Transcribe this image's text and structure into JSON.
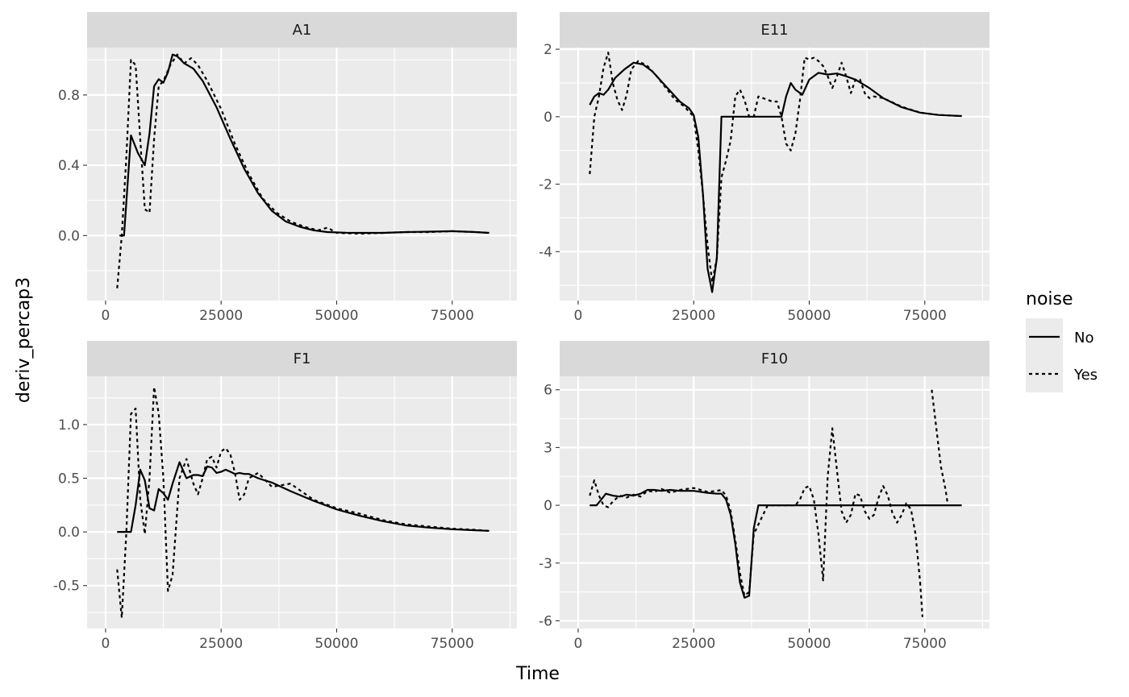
{
  "chart_data": {
    "type": "line",
    "xlabel": "Time",
    "ylabel": "deriv_percap3",
    "legend": {
      "title": "noise",
      "position": "right",
      "entries": [
        {
          "label": "No",
          "linetype": "solid"
        },
        {
          "label": "Yes",
          "linetype": "dashed"
        }
      ]
    },
    "grid": true,
    "panels": [
      {
        "title": "A1",
        "xlim": [
          -4000,
          89000
        ],
        "ylim": [
          -0.37,
          1.07
        ],
        "xticks": [
          0,
          25000,
          50000,
          75000
        ],
        "xtick_labels": [
          "0",
          "25000",
          "50000",
          "75000"
        ],
        "yticks": [
          0.0,
          0.4,
          0.8
        ],
        "ytick_labels": [
          "0.0",
          "0.4",
          "0.8"
        ],
        "series": [
          {
            "name": "No",
            "x": [
              3000,
              4000,
              5500,
              7000,
              8500,
              9500,
              10500,
              11500,
              12500,
              13500,
              14500,
              15500,
              17000,
              19000,
              21000,
              24000,
              27000,
              30000,
              33000,
              36000,
              39000,
              42000,
              45000,
              48000,
              52000,
              56000,
              60000,
              65000,
              70000,
              75000,
              80000,
              83000
            ],
            "y": [
              0.0,
              0.0,
              0.57,
              0.47,
              0.4,
              0.58,
              0.85,
              0.89,
              0.87,
              0.93,
              1.03,
              1.02,
              0.98,
              0.95,
              0.88,
              0.73,
              0.55,
              0.38,
              0.24,
              0.14,
              0.08,
              0.05,
              0.03,
              0.02,
              0.016,
              0.015,
              0.015,
              0.02,
              0.022,
              0.025,
              0.02,
              0.015
            ]
          },
          {
            "name": "Yes",
            "x": [
              2500,
              3500,
              4500,
              5500,
              6500,
              7500,
              8500,
              9500,
              10500,
              11500,
              12500,
              14000,
              15500,
              17000,
              18500,
              20000,
              22000,
              25000,
              28000,
              31000,
              34000,
              37000,
              40000,
              43000,
              46000,
              48000,
              50000,
              55000,
              60000,
              65000,
              70000,
              75000,
              80000,
              83000
            ],
            "y": [
              -0.3,
              0.0,
              0.45,
              1.0,
              0.97,
              0.55,
              0.15,
              0.13,
              0.55,
              0.85,
              0.88,
              0.97,
              1.03,
              0.98,
              1.01,
              0.97,
              0.88,
              0.72,
              0.52,
              0.35,
              0.21,
              0.13,
              0.08,
              0.05,
              0.03,
              0.045,
              0.015,
              0.01,
              0.015,
              0.02,
              0.02,
              0.025,
              0.02,
              0.015
            ]
          }
        ]
      },
      {
        "title": "E11",
        "xlim": [
          -4000,
          89000
        ],
        "ylim": [
          -5.45,
          2.05
        ],
        "xticks": [
          0,
          25000,
          50000,
          75000
        ],
        "xtick_labels": [
          "0",
          "25000",
          "50000",
          "75000"
        ],
        "yticks": [
          -4,
          -2,
          0,
          2
        ],
        "ytick_labels": [
          "-4",
          "-2",
          "0",
          "2"
        ],
        "series": [
          {
            "name": "No",
            "x": [
              2500,
              3500,
              4500,
              5500,
              6500,
              8000,
              10000,
              12000,
              14000,
              16000,
              18000,
              20000,
              22000,
              24000,
              25000,
              26000,
              27000,
              28000,
              29000,
              30000,
              31000,
              32000,
              34000,
              36000,
              38000,
              40000,
              42000,
              44000,
              45000,
              46000,
              47000,
              48500,
              50000,
              52000,
              54000,
              56000,
              58000,
              60000,
              63000,
              66000,
              70000,
              74000,
              78000,
              83000
            ],
            "y": [
              0.35,
              0.6,
              0.7,
              0.65,
              0.8,
              1.15,
              1.4,
              1.6,
              1.55,
              1.35,
              1.05,
              0.75,
              0.45,
              0.25,
              0.05,
              -0.6,
              -2.3,
              -4.5,
              -5.2,
              -4.2,
              0.0,
              0.0,
              0.0,
              0.0,
              0.0,
              0.0,
              0.0,
              0.0,
              0.6,
              1.0,
              0.8,
              0.65,
              1.1,
              1.3,
              1.25,
              1.28,
              1.2,
              1.1,
              0.85,
              0.55,
              0.28,
              0.12,
              0.05,
              0.02
            ]
          },
          {
            "name": "Yes",
            "x": [
              2500,
              3500,
              4500,
              5500,
              6500,
              7500,
              8500,
              9500,
              10500,
              11500,
              13000,
              15000,
              17000,
              19000,
              21000,
              23000,
              25000,
              26000,
              27000,
              28000,
              29000,
              30000,
              31000,
              32000,
              33000,
              34000,
              35000,
              36000,
              37000,
              38000,
              39000,
              40000,
              42000,
              43000,
              44000,
              45000,
              46000,
              47000,
              48000,
              49000,
              50000,
              51000,
              52000,
              53000,
              54000,
              55000,
              56000,
              57000,
              58000,
              59000,
              60000,
              61000,
              62000,
              63000,
              64000,
              66000,
              70000,
              74000,
              78000,
              83000
            ],
            "y": [
              -1.7,
              0.0,
              0.6,
              1.45,
              1.9,
              1.0,
              0.5,
              0.2,
              0.65,
              1.4,
              1.65,
              1.5,
              1.2,
              0.85,
              0.5,
              0.3,
              0.0,
              -1.0,
              -2.3,
              -3.8,
              -4.9,
              -4.2,
              -1.8,
              -1.3,
              -0.7,
              0.6,
              0.8,
              0.5,
              0.0,
              0.0,
              0.6,
              0.55,
              0.45,
              0.45,
              0.0,
              -0.8,
              -1.0,
              -0.5,
              0.5,
              1.75,
              1.7,
              1.75,
              1.65,
              1.5,
              1.2,
              0.85,
              1.2,
              1.6,
              1.2,
              0.7,
              1.1,
              1.1,
              0.7,
              0.55,
              0.6,
              0.55,
              0.3,
              0.12,
              0.05,
              0.02
            ]
          }
        ]
      },
      {
        "title": "F1",
        "xlim": [
          -4000,
          89000
        ],
        "ylim": [
          -0.9,
          1.45
        ],
        "xticks": [
          0,
          25000,
          50000,
          75000
        ],
        "xtick_labels": [
          "0",
          "25000",
          "50000",
          "75000"
        ],
        "yticks": [
          -0.5,
          0.0,
          0.5,
          1.0
        ],
        "ytick_labels": [
          "-0.5",
          "0.0",
          "0.5",
          "1.0"
        ],
        "series": [
          {
            "name": "No",
            "x": [
              2500,
              3500,
              4500,
              5500,
              6500,
              7500,
              8500,
              9500,
              10500,
              11500,
              12500,
              13500,
              14500,
              16000,
              17500,
              19000,
              20000,
              21000,
              22000,
              23000,
              24000,
              25000,
              26000,
              27000,
              28000,
              29000,
              30000,
              31000,
              33000,
              36000,
              40000,
              45000,
              50000,
              55000,
              60000,
              65000,
              70000,
              75000,
              80000,
              83000
            ],
            "y": [
              0.0,
              0.0,
              0.0,
              0.0,
              0.25,
              0.58,
              0.48,
              0.22,
              0.2,
              0.4,
              0.36,
              0.3,
              0.45,
              0.65,
              0.5,
              0.53,
              0.53,
              0.52,
              0.61,
              0.6,
              0.55,
              0.56,
              0.58,
              0.56,
              0.54,
              0.55,
              0.54,
              0.54,
              0.5,
              0.46,
              0.38,
              0.29,
              0.21,
              0.15,
              0.1,
              0.06,
              0.04,
              0.025,
              0.015,
              0.01
            ]
          },
          {
            "name": "Yes",
            "x": [
              2500,
              3500,
              4500,
              5500,
              6500,
              7500,
              8500,
              9500,
              10500,
              11500,
              12500,
              13500,
              14500,
              16000,
              17500,
              19000,
              20000,
              21000,
              22000,
              23000,
              24000,
              25000,
              26000,
              27000,
              28000,
              29000,
              30000,
              31000,
              33000,
              36000,
              40000,
              45000,
              50000,
              55000,
              60000,
              65000,
              70000,
              75000,
              80000,
              83000
            ],
            "y": [
              -0.35,
              -0.8,
              0.0,
              1.1,
              1.15,
              0.3,
              -0.02,
              0.5,
              1.35,
              1.1,
              0.5,
              -0.55,
              -0.4,
              0.5,
              0.68,
              0.45,
              0.35,
              0.5,
              0.68,
              0.7,
              0.6,
              0.75,
              0.78,
              0.72,
              0.55,
              0.3,
              0.35,
              0.5,
              0.55,
              0.42,
              0.45,
              0.3,
              0.22,
              0.17,
              0.11,
              0.07,
              0.05,
              0.03,
              0.02,
              0.01
            ]
          }
        ]
      },
      {
        "title": "F10",
        "xlim": [
          -4000,
          89000
        ],
        "ylim": [
          -6.4,
          6.7
        ],
        "xticks": [
          0,
          25000,
          50000,
          75000
        ],
        "xtick_labels": [
          "0",
          "25000",
          "50000",
          "75000"
        ],
        "yticks": [
          -6,
          -3,
          0,
          3,
          6
        ],
        "ytick_labels": [
          "-6",
          "-3",
          "0",
          "3",
          "6"
        ],
        "series": [
          {
            "name": "No",
            "x": [
              2500,
              4000,
              5000,
              6000,
              7500,
              9000,
              10500,
              12000,
              13500,
              15000,
              16500,
              18000,
              20000,
              22000,
              25000,
              28000,
              30000,
              31000,
              32000,
              33000,
              34000,
              35000,
              36000,
              37000,
              38000,
              39000,
              41000,
              45000,
              50000,
              55000,
              60000,
              65000,
              70000,
              75000,
              80000,
              83000
            ],
            "y": [
              0.0,
              0.0,
              0.3,
              0.6,
              0.5,
              0.45,
              0.55,
              0.5,
              0.6,
              0.8,
              0.8,
              0.75,
              0.8,
              0.75,
              0.75,
              0.65,
              0.6,
              0.6,
              0.3,
              -0.5,
              -2.0,
              -4.0,
              -4.8,
              -4.7,
              -1.2,
              0.0,
              0.0,
              0.0,
              0.0,
              0.0,
              0.0,
              0.0,
              0.0,
              0.0,
              0.0,
              0.0
            ]
          },
          {
            "name": "Yes",
            "x": [
              2500,
              3500,
              4500,
              5500,
              6500,
              7500,
              9000,
              10500,
              12000,
              13500,
              15000,
              16500,
              18000,
              20000,
              22000,
              25000,
              28000,
              30000,
              31000,
              32000,
              33000,
              34000,
              35000,
              36000,
              37000,
              38000,
              39000,
              41000,
              45000,
              47000,
              48000,
              49000,
              50000,
              51000,
              52000,
              53000,
              54000,
              55000,
              56000,
              57000,
              58000,
              59000,
              60000,
              61000,
              62000,
              63000,
              64000,
              65000,
              66000,
              67000,
              68000,
              69000,
              70000,
              71000,
              72000,
              73000,
              74000
            ],
            "y": [
              0.5,
              1.3,
              0.5,
              0.0,
              -0.1,
              0.2,
              0.5,
              0.4,
              0.55,
              0.45,
              0.75,
              0.7,
              0.85,
              0.65,
              0.8,
              0.9,
              0.7,
              0.75,
              0.8,
              0.5,
              -0.3,
              -1.8,
              -3.5,
              -4.7,
              -4.5,
              -1.5,
              -1.0,
              0.0,
              0.0,
              0.0,
              0.3,
              0.9,
              1.0,
              0.3,
              -1.5,
              -3.9,
              1.5,
              4.0,
              1.8,
              -0.3,
              -0.9,
              -0.5,
              0.6,
              0.5,
              -0.3,
              -0.7,
              -0.5,
              0.4,
              1.0,
              0.5,
              -0.4,
              -0.9,
              -0.5,
              0.1,
              -0.2,
              -1.5,
              -4.0
            ]
          },
          {
            "name": "Yes",
            "x": [
              74000,
              74500
            ],
            "y": [
              -4.0,
              -5.8
            ]
          },
          {
            "name": "Yes",
            "x": [
              76500,
              77500,
              78500,
              79500,
              80000
            ],
            "y": [
              6.0,
              4.0,
              2.0,
              0.8,
              0.0
            ]
          }
        ]
      }
    ]
  }
}
